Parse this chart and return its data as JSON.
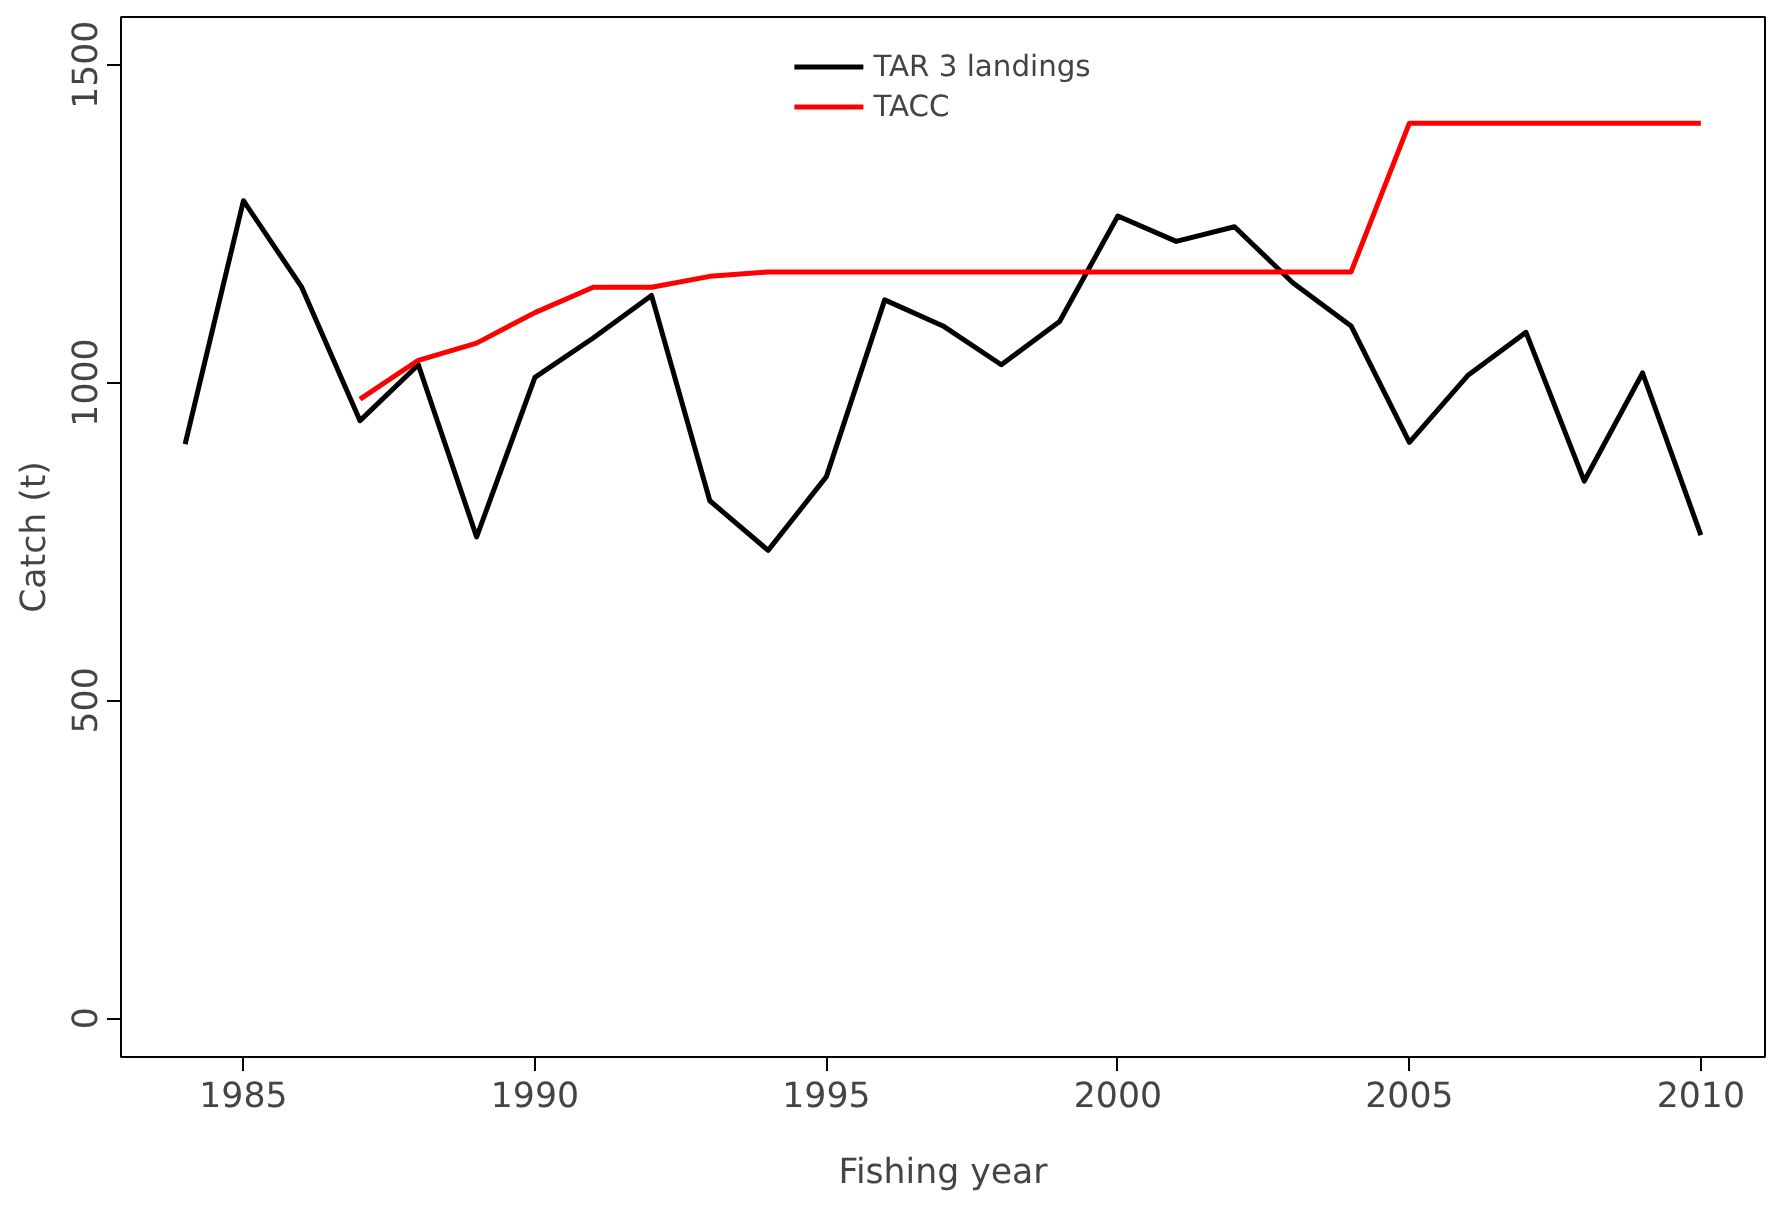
{
  "chart_data": {
    "type": "line",
    "xlabel": "Fishing year",
    "ylabel": "Catch (t)",
    "xlim": [
      1982.9,
      2011.1
    ],
    "ylim": [
      -61,
      1575
    ],
    "xticks": [
      1985,
      1990,
      1995,
      2000,
      2005,
      2010
    ],
    "yticks": [
      0,
      500,
      1000,
      1500
    ],
    "grid": false,
    "legend": "top",
    "marker": "none",
    "line_style": "solid",
    "series": [
      {
        "name": "TAR 3 landings",
        "color": "#000000",
        "x": [
          1984,
          1985,
          1986,
          1987,
          1988,
          1989,
          1990,
          1991,
          1992,
          1993,
          1994,
          1995,
          1996,
          1997,
          1998,
          1999,
          2000,
          2001,
          2002,
          2003,
          2004,
          2005,
          2006,
          2007,
          2008,
          2009,
          2010
        ],
        "values": [
          903,
          1286,
          1150,
          940,
          1028,
          757,
          1008,
          1070,
          1137,
          814,
          736,
          852,
          1130,
          1089,
          1028,
          1096,
          1262,
          1222,
          1245,
          1157,
          1089,
          906,
          1011,
          1079,
          845,
          1015,
          760
        ]
      },
      {
        "name": "TACC",
        "color": "#ff0000",
        "x": [
          1987,
          1988,
          1989,
          1990,
          1991,
          1992,
          1993,
          1994,
          1995,
          1996,
          1997,
          1998,
          1999,
          2000,
          2001,
          2002,
          2003,
          2004,
          2005,
          2006,
          2007,
          2008,
          2009,
          2010
        ],
        "values": [
          974,
          1035,
          1062,
          1110,
          1150,
          1150,
          1167,
          1174,
          1174,
          1174,
          1174,
          1174,
          1174,
          1174,
          1174,
          1174,
          1174,
          1174,
          1408,
          1408,
          1408,
          1408,
          1408,
          1408
        ]
      }
    ]
  }
}
